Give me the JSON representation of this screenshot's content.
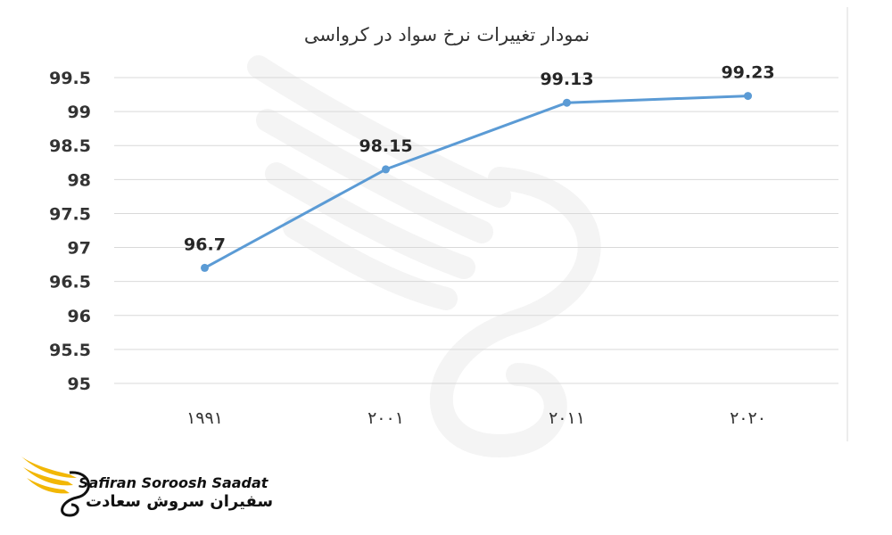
{
  "chart_data": {
    "type": "line",
    "title": "نمودار تغییرات نرخ سواد در کرواسی",
    "categories": [
      "۱۹۹۱",
      "۲۰۰۱",
      "۲۰۱۱",
      "۲۰۲۰"
    ],
    "series": [
      {
        "values": [
          96.7,
          98.15,
          99.13,
          99.23
        ],
        "data_labels": [
          "96.7",
          "98.15",
          "99.13",
          "99.23"
        ]
      }
    ],
    "y_ticks": [
      "95",
      "95.5",
      "96",
      "96.5",
      "97",
      "97.5",
      "98",
      "98.5",
      "99",
      "99.5"
    ],
    "ylim": [
      95,
      99.5
    ],
    "grid": true,
    "legend": "none",
    "colors": {
      "line": "#5b9bd5",
      "grid": "#d9d9d9"
    }
  },
  "logo": {
    "text_en": "Safiran Soroosh Saadat",
    "text_fa": "سفیران سروش سعادت",
    "colors": {
      "gold": "#f2b705",
      "dark": "#111111"
    }
  }
}
